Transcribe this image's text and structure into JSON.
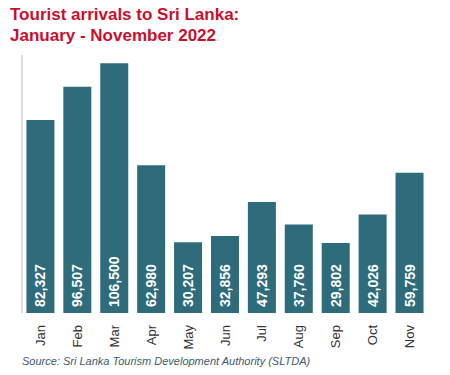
{
  "chart_data": {
    "type": "bar",
    "title": "Tourist arrivals to Sri Lanka:",
    "subtitle": "January - November 2022",
    "source": "Source: Sri Lanka Tourism Development Authority (SLTDA)",
    "categories": [
      "Jan",
      "Feb",
      "Mar",
      "Apr",
      "May",
      "Jun",
      "Jul",
      "Aug",
      "Sep",
      "Oct",
      "Nov"
    ],
    "values": [
      82327,
      96507,
      106500,
      62980,
      30207,
      32856,
      47293,
      37760,
      29802,
      42026,
      59759
    ],
    "value_labels": [
      "82,327",
      "96,507",
      "106,500",
      "62,980",
      "30,207",
      "32,856",
      "47,293",
      "37,760",
      "29,802",
      "42,026",
      "59,759"
    ],
    "color": "#2e6b7b",
    "ylim": [
      0,
      110000
    ],
    "grid": false,
    "data_labels": true,
    "tick_labels": "x"
  }
}
